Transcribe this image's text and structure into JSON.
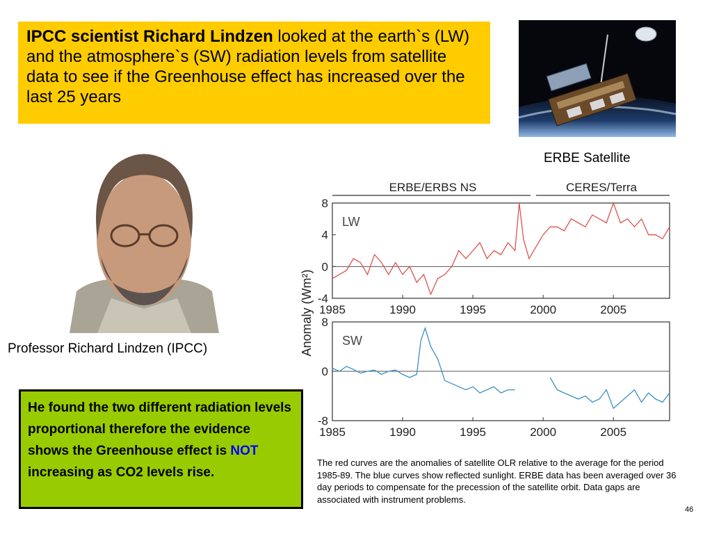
{
  "headline": {
    "bold": "IPCC scientist Richard Lindzen",
    "rest": " looked at the earth`s (LW) and the atmosphere`s (SW) radiation levels from satellite data to see if the Greenhouse effect has increased over the last 25 years"
  },
  "satellite": {
    "caption": "ERBE Satellite"
  },
  "portrait": {
    "caption": "Professor Richard Lindzen (IPCC)"
  },
  "conclusion": {
    "before": "He found the two different radiation levels proportional therefore the evidence shows the Greenhouse effect is ",
    "emphasis": "NOT",
    "after": " increasing as CO2 levels rise."
  },
  "chart_data": [
    {
      "type": "line",
      "label": "LW",
      "period_labels": [
        "ERBE/ERBS NS",
        "CERES/Terra"
      ],
      "ylabel": "Anomaly (Wm²)",
      "ylim": [
        -4,
        8
      ],
      "yticks": [
        8,
        4,
        0,
        -4
      ],
      "xlim": [
        1985,
        2009
      ],
      "xticks": [
        1985,
        1990,
        1995,
        2000,
        2005
      ],
      "series": [
        {
          "color": "#d9534f",
          "x": [
            1985,
            1985.5,
            1986,
            1986.5,
            1987,
            1987.5,
            1988,
            1988.5,
            1989,
            1989.5,
            1990,
            1990.5,
            1991,
            1991.5,
            1992,
            1992.5,
            1993,
            1993.5,
            1994,
            1994.5,
            1995,
            1995.5,
            1996,
            1996.5,
            1997,
            1997.5,
            1998,
            1998.3,
            1998.6,
            1999,
            2000,
            2000.5,
            2001,
            2001.5,
            2002,
            2002.5,
            2003,
            2003.5,
            2004,
            2004.5,
            2005,
            2005.5,
            2006,
            2006.5,
            2007,
            2007.5,
            2008,
            2008.5,
            2009
          ],
          "y": [
            -1.5,
            -1,
            -0.5,
            1,
            0.5,
            -1,
            1.5,
            0.5,
            -1,
            0.5,
            -1,
            0,
            -2,
            -1,
            -3.5,
            -1.5,
            -1,
            0,
            2,
            1,
            2,
            3,
            1,
            2,
            1.5,
            3,
            2,
            8,
            3.5,
            1,
            4,
            5,
            5,
            4.5,
            6,
            5.5,
            5,
            6.5,
            6,
            5.5,
            8,
            5.5,
            6,
            5,
            6,
            4,
            4,
            3.5,
            5
          ]
        }
      ]
    },
    {
      "type": "line",
      "label": "SW",
      "ylim": [
        -8,
        8
      ],
      "yticks": [
        8,
        0,
        -8
      ],
      "xlim": [
        1985,
        2009
      ],
      "xticks": [
        1985,
        1990,
        1995,
        2000,
        2005
      ],
      "series": [
        {
          "color": "#3a8fc6",
          "x": [
            1985,
            1985.5,
            1986,
            1986.5,
            1987,
            1987.5,
            1988,
            1988.5,
            1989,
            1989.5,
            1990,
            1990.5,
            1991,
            1991.3,
            1991.6,
            1992,
            1992.5,
            1993,
            1994,
            1994.5,
            1995,
            1995.5,
            1996,
            1996.5,
            1997,
            1997.5,
            1998,
            2000.5,
            2001,
            2001.5,
            2002,
            2002.5,
            2003,
            2003.5,
            2004,
            2004.5,
            2005,
            2005.5,
            2006.5,
            2007,
            2007.5,
            2008,
            2008.5,
            2009
          ],
          "y": [
            0.5,
            0,
            0.8,
            0.3,
            -0.3,
            0,
            0.2,
            -0.5,
            0,
            0.2,
            -0.5,
            -1,
            -0.5,
            5,
            7,
            4,
            2,
            -1.5,
            -2.5,
            -3,
            -2.5,
            -3.5,
            -3,
            -2.5,
            -3.5,
            -3,
            -3,
            -1,
            -3,
            -3.5,
            -4,
            -4.5,
            -4,
            -5,
            -4.5,
            -3,
            -6,
            -5,
            -3,
            -5,
            -3.5,
            -4.5,
            -5,
            -3.5
          ]
        }
      ]
    }
  ],
  "chart_note": "The red curves are the anomalies of satellite OLR relative to the average for the period 1985-89.  The blue curves show reflected sunlight. ERBE data has been averaged over 36 day periods to compensate for the precession of the satellite orbit.  Data gaps are associated with instrument problems.",
  "slide_number": "46"
}
